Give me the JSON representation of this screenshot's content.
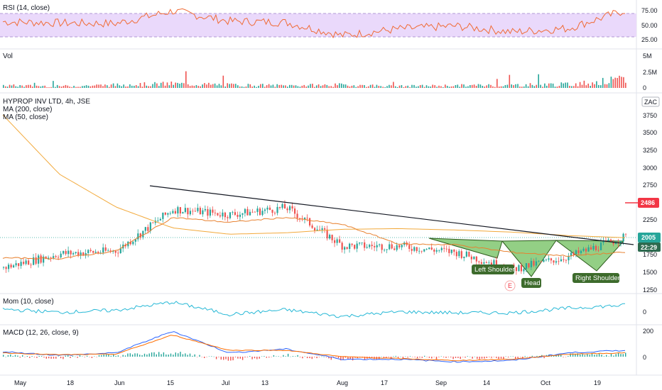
{
  "colors": {
    "up": "#26a69a",
    "down": "#ef5350",
    "ma200": "#f2a93b",
    "ma50": "#e8812f",
    "rsi": "#f06b35",
    "rsi_band": "#ead9fb",
    "mom": "#26b8d6",
    "macd": "#2962ff",
    "signal": "#ff6d00",
    "pattern_fill": "#6fbf5c",
    "pattern_line": "#2d5c1d",
    "trend": "#131722",
    "label_bg": "#3d6b2c",
    "last_price_bg": "#26a69a",
    "countdown_bg": "#2d6a4f",
    "red_tag": "#f23645"
  },
  "panes": {
    "rsi": {
      "title": "RSI (14, close)",
      "ticks": [
        "75.00",
        "50.00",
        "25.00"
      ]
    },
    "vol": {
      "title": "Vol",
      "ticks": [
        "5M",
        "2.5M",
        "0"
      ]
    },
    "price": {
      "title": "HYPROP INV LTD, 4h, JSE",
      "ma200_label": "MA (200, close)",
      "ma50_label": "MA (50, close)",
      "currency": "ZAC",
      "ticks": [
        "3750",
        "3500",
        "3250",
        "3000",
        "2750",
        "2500",
        "2250",
        "1750",
        "1500",
        "1250"
      ],
      "last_price": "2005",
      "countdown": "22:29",
      "target_tag": "2486"
    },
    "mom": {
      "title": "Mom (10, close)",
      "ticks": [
        "0"
      ]
    },
    "macd": {
      "title": "MACD (12, 26, close, 9)",
      "ticks": [
        "200",
        "0"
      ]
    }
  },
  "annotations": {
    "left_shoulder": "Left Shoulder",
    "head": "Head",
    "right_shoulder": "Right Shoulder",
    "earnings_marker": "E"
  },
  "x_axis": [
    "May",
    "18",
    "Jun",
    "15",
    "Jul",
    "13",
    "Aug",
    "17",
    "Sep",
    "14",
    "Oct",
    "19"
  ],
  "chart_data": [
    {
      "type": "line",
      "title": "RSI (14, close)",
      "ylim": [
        20,
        85
      ],
      "bands": [
        30,
        70
      ],
      "x": [
        "May",
        "18",
        "Jun",
        "15",
        "Jul",
        "13",
        "Aug",
        "17",
        "Sep",
        "14",
        "Oct",
        "19"
      ],
      "values": [
        57,
        55,
        54,
        75,
        58,
        56,
        34,
        45,
        50,
        40,
        46,
        76
      ]
    },
    {
      "type": "bar",
      "title": "Vol",
      "ylim": [
        0,
        5000000
      ],
      "x": [
        "May",
        "18",
        "Jun",
        "15",
        "Jul",
        "13",
        "Aug",
        "17",
        "Sep",
        "14",
        "Oct",
        "19"
      ],
      "values": [
        400000,
        300000,
        500000,
        700000,
        500000,
        400000,
        500000,
        300000,
        400000,
        500000,
        600000,
        1400000
      ]
    },
    {
      "type": "line",
      "title": "HYPROP INV LTD, 4h, JSE",
      "ylabel": "ZAC",
      "ylim": [
        1150,
        3950
      ],
      "x": [
        "May",
        "18",
        "Jun",
        "15",
        "Jul",
        "13",
        "Aug",
        "17",
        "Sep",
        "14",
        "Oct",
        "19"
      ],
      "series": [
        {
          "name": "close",
          "values": [
            1560,
            1760,
            1800,
            2400,
            2320,
            2420,
            1870,
            1870,
            1780,
            1540,
            1720,
            2005
          ]
        },
        {
          "name": "MA (200, close)",
          "values": [
            3750,
            2900,
            2430,
            2130,
            2040,
            2060,
            2110,
            2120,
            2100,
            2070,
            2020,
            1990
          ]
        },
        {
          "name": "MA (50, close)",
          "values": [
            1700,
            1690,
            1800,
            2280,
            2210,
            2280,
            2180,
            1900,
            1890,
            1780,
            1730,
            1780
          ]
        }
      ]
    },
    {
      "type": "line",
      "title": "Mom (10, close)",
      "x": [
        "May",
        "18",
        "Jun",
        "15",
        "Jul",
        "13",
        "Aug",
        "17",
        "Sep",
        "14",
        "Oct",
        "19"
      ],
      "values": [
        40,
        -20,
        20,
        180,
        -60,
        30,
        -100,
        -10,
        -30,
        -30,
        60,
        120
      ]
    },
    {
      "type": "line",
      "title": "MACD (12, 26, close, 9)",
      "ylim": [
        -150,
        250
      ],
      "x": [
        "May",
        "18",
        "Jun",
        "15",
        "Jul",
        "13",
        "Aug",
        "17",
        "Sep",
        "14",
        "Oct",
        "19"
      ],
      "series": [
        {
          "name": "MACD",
          "values": [
            40,
            10,
            30,
            200,
            30,
            60,
            -20,
            -20,
            -40,
            -30,
            30,
            50
          ]
        },
        {
          "name": "signal",
          "values": [
            30,
            15,
            20,
            170,
            50,
            50,
            0,
            -15,
            -30,
            -20,
            20,
            30
          ]
        }
      ]
    }
  ]
}
